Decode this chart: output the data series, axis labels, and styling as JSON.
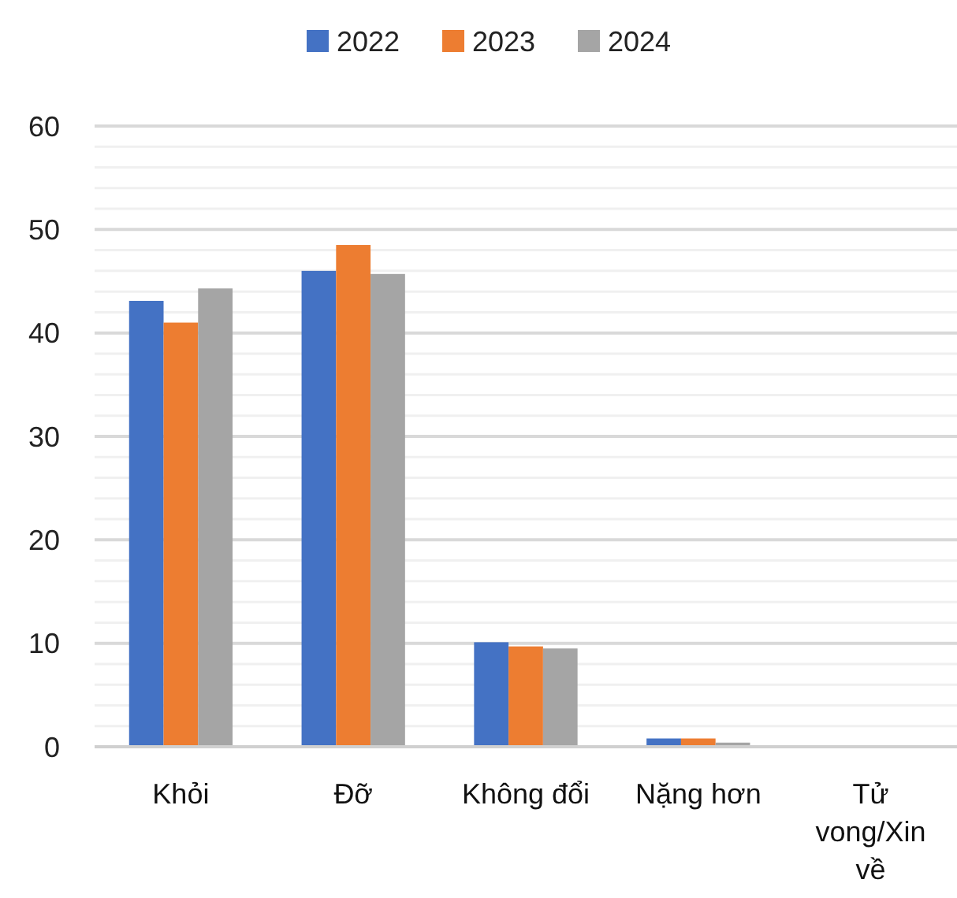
{
  "chart_data": {
    "type": "bar",
    "categories": [
      "Khỏi",
      "Đỡ",
      "Không đổi",
      "Nặng hơn",
      "Tử vong/Xin về"
    ],
    "series": [
      {
        "name": "2022",
        "color": "#4472c4",
        "values": [
          43.1,
          46,
          10.1,
          0.8,
          0
        ]
      },
      {
        "name": "2023",
        "color": "#ed7d31",
        "values": [
          41,
          48.5,
          9.7,
          0.8,
          0
        ]
      },
      {
        "name": "2024",
        "color": "#a5a5a5",
        "values": [
          44.3,
          45.7,
          9.5,
          0.4,
          0
        ]
      }
    ],
    "ylim": [
      0,
      60
    ],
    "yticks": [
      0,
      {
        "value": 2,
        "label": null
      },
      {
        "value": 4,
        "label": null
      },
      {
        "value": 6,
        "label": null
      },
      {
        "value": 8,
        "label": null
      },
      10,
      {
        "value": 12,
        "label": null
      },
      {
        "value": 14,
        "label": null
      },
      {
        "value": 16,
        "label": null
      },
      {
        "value": 18,
        "label": null
      },
      20,
      {
        "value": 22,
        "label": null
      },
      {
        "value": 24,
        "label": null
      },
      {
        "value": 26,
        "label": null
      },
      {
        "value": 28,
        "label": null
      },
      30,
      {
        "value": 32,
        "label": null
      },
      {
        "value": 34,
        "label": null
      },
      {
        "value": 36,
        "label": null
      },
      {
        "value": 38,
        "label": null
      },
      40,
      {
        "value": 42,
        "label": null
      },
      {
        "value": 44,
        "label": null
      },
      {
        "value": 46,
        "label": null
      },
      {
        "value": 48,
        "label": null
      },
      50,
      {
        "value": 52,
        "label": null
      },
      {
        "value": 54,
        "label": null
      },
      {
        "value": 56,
        "label": null
      },
      {
        "value": 58,
        "label": null
      },
      60
    ],
    "grid": true,
    "legend": "top"
  }
}
